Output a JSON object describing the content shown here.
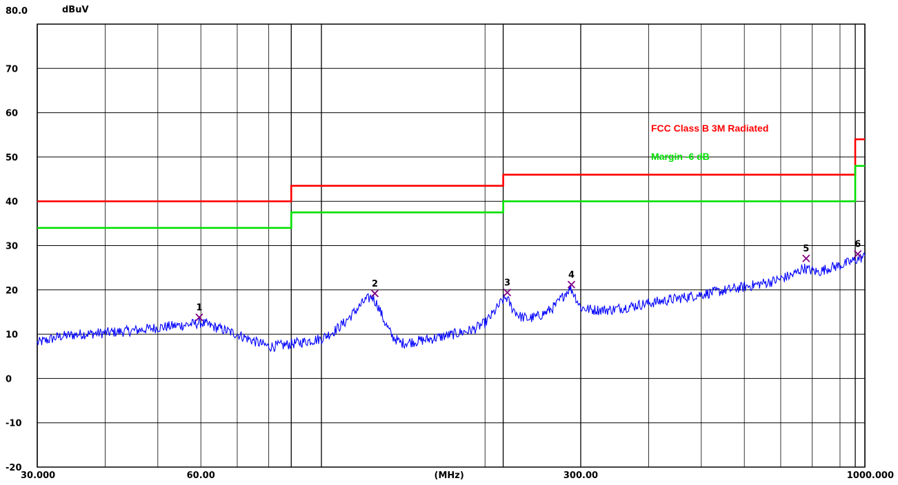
{
  "chart_data": {
    "type": "line",
    "title": "",
    "xlabel": "(MHz)",
    "ylabel": "dBuV",
    "xscale": "log",
    "xlim": [
      30,
      1000
    ],
    "ylim": [
      -20,
      80
    ],
    "y_top_label": "80.0",
    "y_ticks": [
      "70",
      "60",
      "50",
      "40",
      "30",
      "20",
      "10",
      "0",
      "-10",
      "-20"
    ],
    "x_tick_labels": [
      {
        "value": 30,
        "label": "30.000"
      },
      {
        "value": 60,
        "label": "60.00"
      },
      {
        "value": 300,
        "label": "300.00"
      },
      {
        "value": 1000,
        "label": "1000.000"
      }
    ],
    "x_unit_position": 175,
    "x_gridlines": [
      30,
      40,
      50,
      60,
      70,
      80,
      88,
      100,
      200,
      216,
      300,
      400,
      500,
      600,
      700,
      800,
      900,
      960,
      1000
    ],
    "grid": true,
    "legend": [
      {
        "name": "FCC Class B 3M Radiated",
        "color": "#ff0000"
      },
      {
        "name": "Margin -6 dB",
        "color": "#00e000"
      }
    ],
    "series": [
      {
        "name": "FCC Class B 3M Radiated",
        "color": "#ff0000",
        "points": [
          [
            30,
            40
          ],
          [
            88,
            40
          ],
          [
            88,
            43.5
          ],
          [
            216,
            43.5
          ],
          [
            216,
            46
          ],
          [
            960,
            46
          ],
          [
            960,
            54
          ],
          [
            1000,
            54
          ]
        ]
      },
      {
        "name": "Margin -6 dB",
        "color": "#00e000",
        "points": [
          [
            30,
            34
          ],
          [
            88,
            34
          ],
          [
            88,
            37.5
          ],
          [
            216,
            37.5
          ],
          [
            216,
            40
          ],
          [
            960,
            40
          ],
          [
            960,
            48
          ],
          [
            1000,
            48
          ]
        ]
      },
      {
        "color": "#0000ff",
        "points": [
          [
            30,
            8
          ],
          [
            33,
            9.5
          ],
          [
            36,
            10
          ],
          [
            40,
            10.3
          ],
          [
            45,
            10.8
          ],
          [
            50,
            11.5
          ],
          [
            55,
            12
          ],
          [
            58,
            12.3
          ],
          [
            60,
            12.6
          ],
          [
            63,
            11.8
          ],
          [
            66,
            11
          ],
          [
            70,
            10
          ],
          [
            75,
            8.5
          ],
          [
            80,
            7.2
          ],
          [
            85,
            7.5
          ],
          [
            90,
            8
          ],
          [
            95,
            8.5
          ],
          [
            100,
            9
          ],
          [
            105,
            10.5
          ],
          [
            110,
            12.5
          ],
          [
            115,
            15
          ],
          [
            120,
            17.5
          ],
          [
            124,
            18.5
          ],
          [
            127,
            16.5
          ],
          [
            131,
            12.5
          ],
          [
            135,
            9.5
          ],
          [
            140,
            8
          ],
          [
            148,
            8.3
          ],
          [
            160,
            9
          ],
          [
            175,
            10
          ],
          [
            190,
            11
          ],
          [
            200,
            12.5
          ],
          [
            208,
            15
          ],
          [
            215,
            17.5
          ],
          [
            219,
            18.3
          ],
          [
            224,
            16
          ],
          [
            232,
            14
          ],
          [
            240,
            13.5
          ],
          [
            250,
            14
          ],
          [
            260,
            15
          ],
          [
            270,
            16.5
          ],
          [
            280,
            19
          ],
          [
            287,
            20.5
          ],
          [
            292,
            19
          ],
          [
            300,
            16
          ],
          [
            315,
            15.5
          ],
          [
            340,
            15.5
          ],
          [
            360,
            16
          ],
          [
            400,
            17
          ],
          [
            450,
            18
          ],
          [
            500,
            19
          ],
          [
            560,
            20
          ],
          [
            620,
            21
          ],
          [
            680,
            22
          ],
          [
            740,
            23.5
          ],
          [
            770,
            25
          ],
          [
            790,
            24.5
          ],
          [
            820,
            24
          ],
          [
            860,
            25
          ],
          [
            900,
            25.5
          ],
          [
            950,
            26.5
          ],
          [
            970,
            27
          ],
          [
            1000,
            27.5
          ]
        ]
      }
    ],
    "markers": [
      {
        "label": "1",
        "x": 59.6,
        "y": 13.8
      },
      {
        "label": "2",
        "x": 125.4,
        "y": 19.2
      },
      {
        "label": "3",
        "x": 219.8,
        "y": 19.4
      },
      {
        "label": "4",
        "x": 288.4,
        "y": 21.2
      },
      {
        "label": "5",
        "x": 779.6,
        "y": 27.1
      },
      {
        "label": "6",
        "x": 970.3,
        "y": 28.1
      }
    ]
  }
}
